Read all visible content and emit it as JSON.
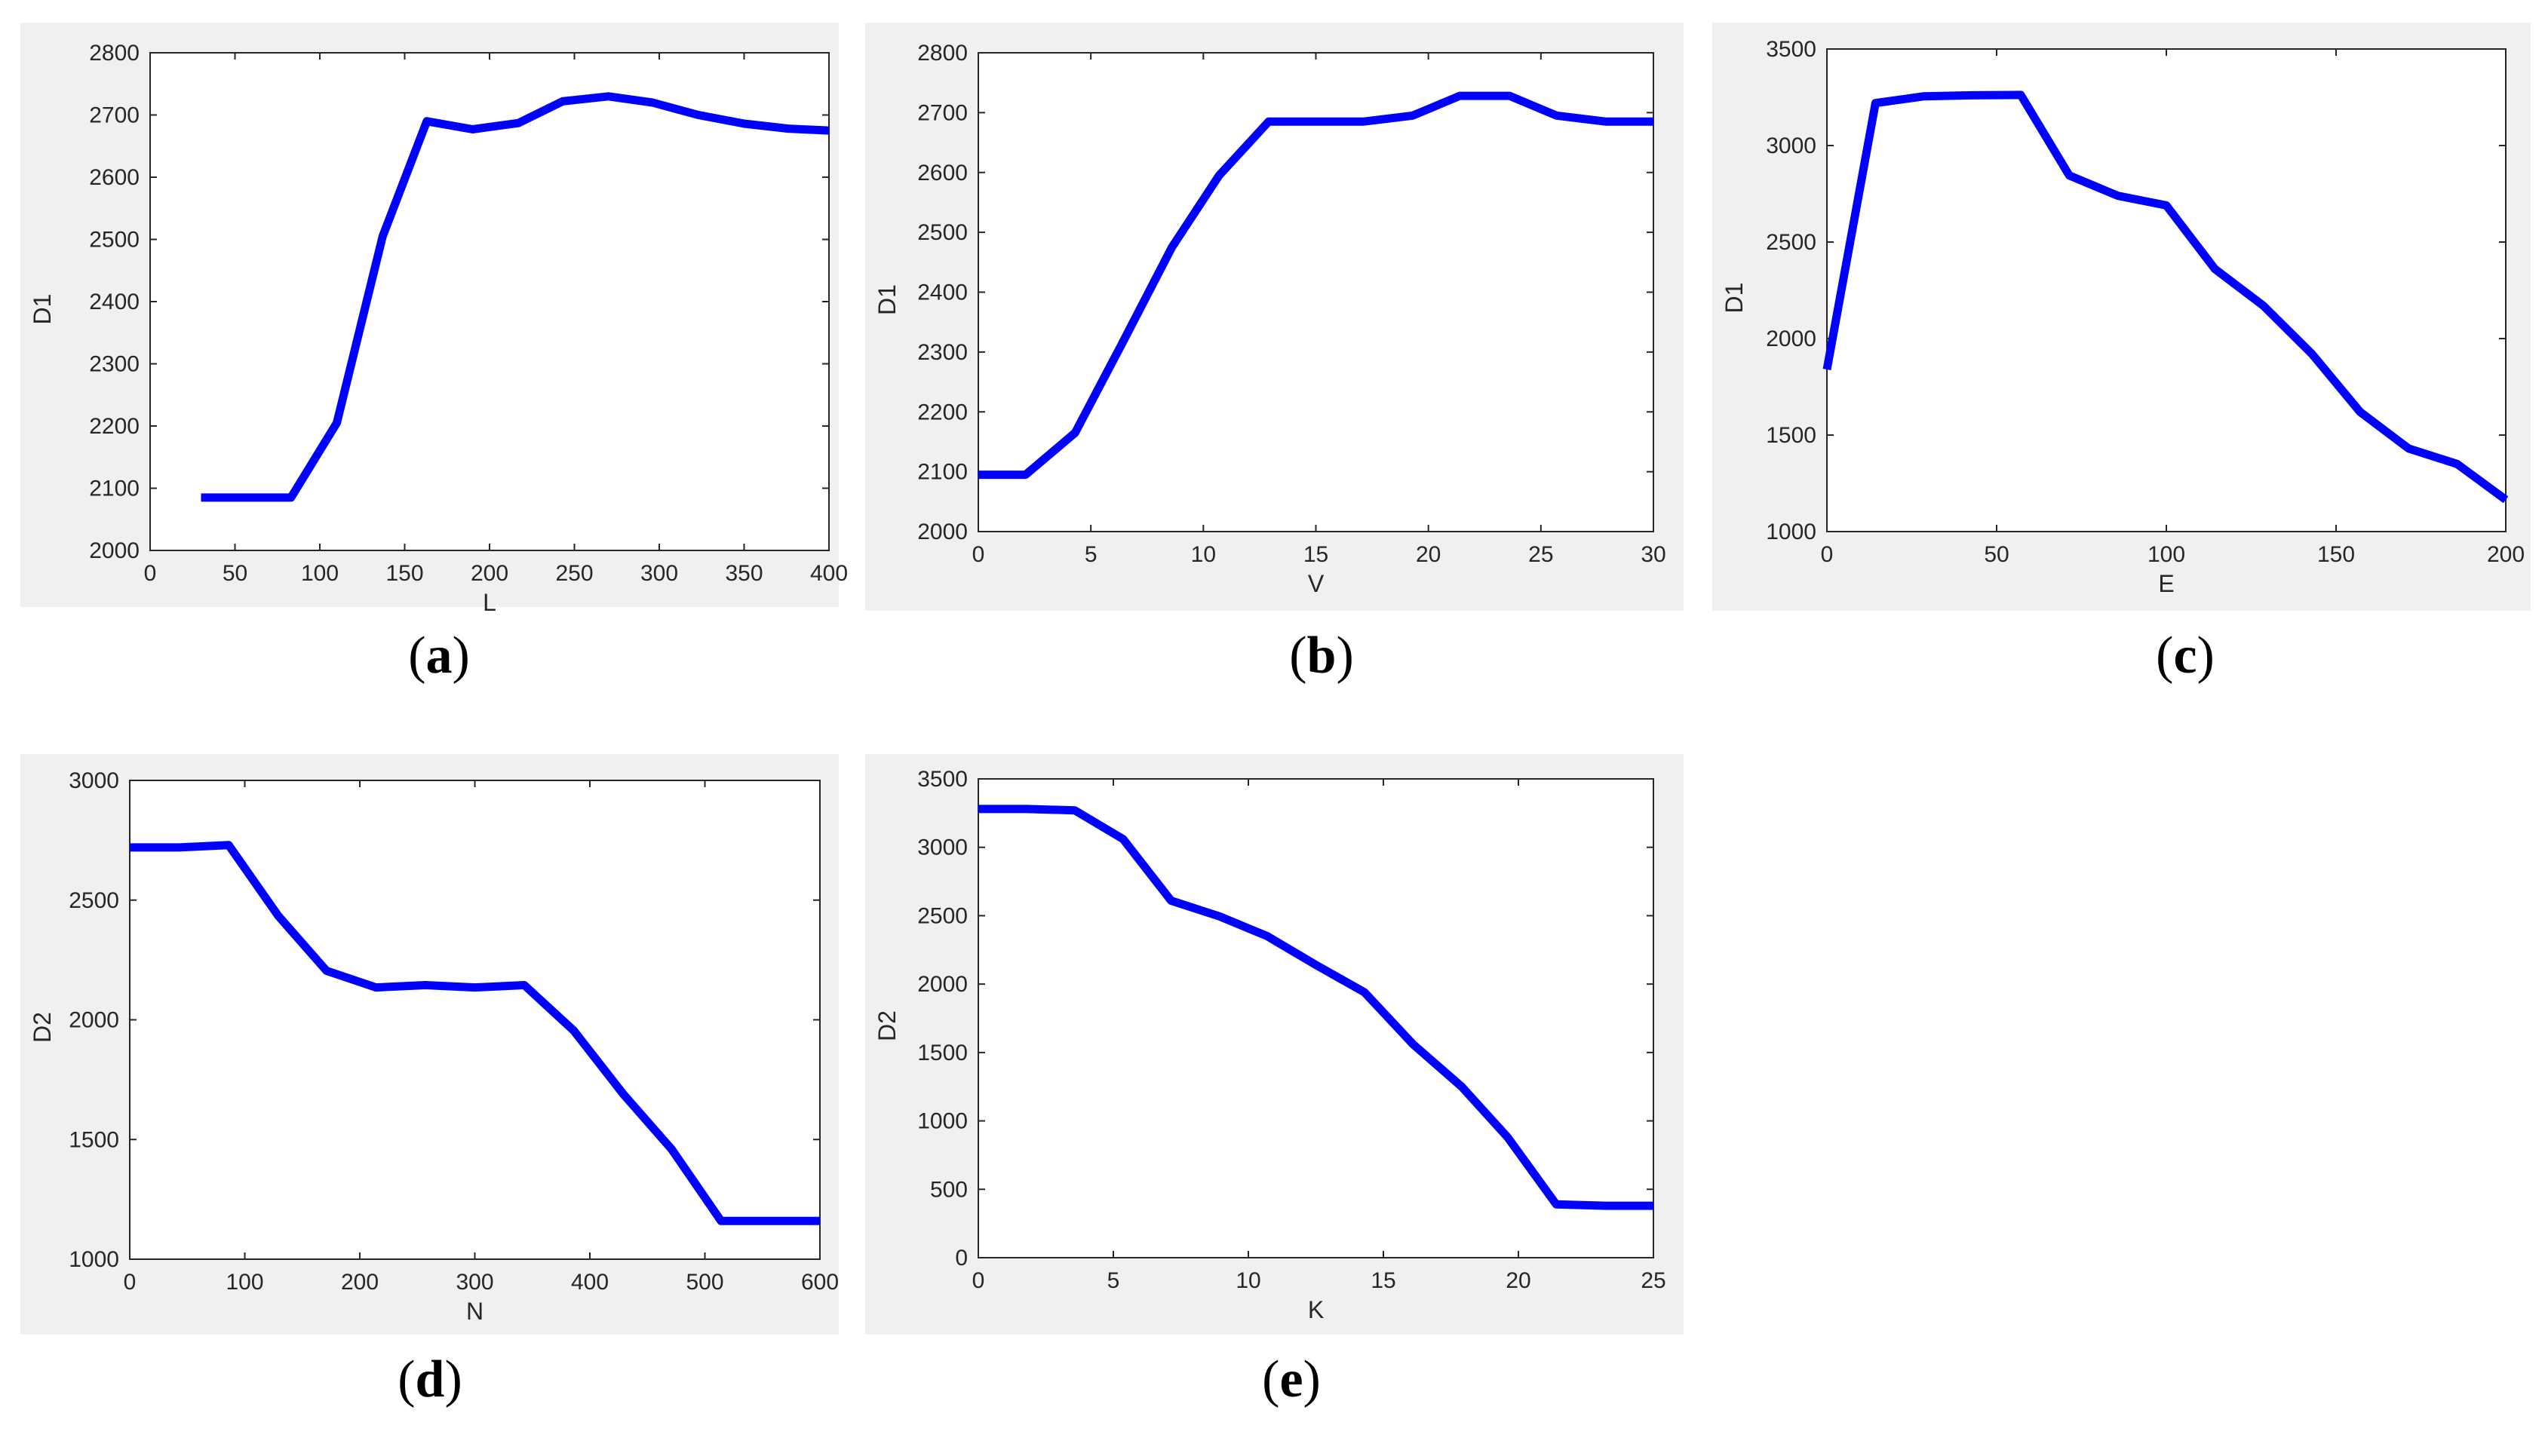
{
  "figure": {
    "line_color": "#0000ff",
    "captions": [
      {
        "open": "(",
        "letter": "a",
        "close": ")"
      },
      {
        "open": "(",
        "letter": "b",
        "close": ")"
      },
      {
        "open": "(",
        "letter": "c",
        "close": ")"
      },
      {
        "open": "(",
        "letter": "d",
        "close": ")"
      },
      {
        "open": "(",
        "letter": "e",
        "close": ")"
      }
    ]
  },
  "chart_data": [
    {
      "type": "line",
      "xlabel": "L",
      "ylabel": "D1",
      "xlim": [
        0,
        400
      ],
      "ylim": [
        2000,
        2800
      ],
      "xticks": [
        0,
        50,
        100,
        150,
        200,
        250,
        300,
        350,
        400
      ],
      "yticks": [
        2000,
        2100,
        2200,
        2300,
        2400,
        2500,
        2600,
        2700,
        2800
      ],
      "grid": false,
      "x": [
        30,
        55,
        83,
        110,
        137,
        163,
        190,
        217,
        243,
        270,
        296,
        323,
        350,
        376,
        400
      ],
      "values": [
        2085,
        2085,
        2085,
        2205,
        2505,
        2690,
        2677,
        2687,
        2722,
        2730,
        2720,
        2700,
        2686,
        2678,
        2675
      ]
    },
    {
      "type": "line",
      "xlabel": "V",
      "ylabel": "D1",
      "xlim": [
        0,
        30
      ],
      "ylim": [
        2000,
        2800
      ],
      "xticks": [
        0,
        5,
        10,
        15,
        20,
        25,
        30
      ],
      "yticks": [
        2000,
        2100,
        2200,
        2300,
        2400,
        2500,
        2600,
        2700,
        2800
      ],
      "grid": false,
      "x": [
        0,
        2.1,
        4.3,
        6.4,
        8.6,
        10.7,
        12.9,
        15,
        17.1,
        19.3,
        21.4,
        23.6,
        25.7,
        27.9,
        30
      ],
      "values": [
        2095,
        2095,
        2165,
        2315,
        2475,
        2595,
        2685,
        2685,
        2685,
        2695,
        2728,
        2728,
        2695,
        2685,
        2685
      ]
    },
    {
      "type": "line",
      "xlabel": "E",
      "ylabel": "D1",
      "xlim": [
        0,
        200
      ],
      "ylim": [
        1000,
        3500
      ],
      "xticks": [
        0,
        50,
        100,
        150,
        200
      ],
      "yticks": [
        1000,
        1500,
        2000,
        2500,
        3000,
        3500
      ],
      "grid": false,
      "x": [
        0,
        14.3,
        28.6,
        42.9,
        57.1,
        71.4,
        85.7,
        100,
        114.3,
        128.6,
        142.9,
        157.1,
        171.4,
        185.7,
        200
      ],
      "values": [
        1840,
        3220,
        3255,
        3260,
        3262,
        2845,
        2740,
        2690,
        2360,
        2170,
        1920,
        1620,
        1430,
        1350,
        1165
      ]
    },
    {
      "type": "line",
      "xlabel": "N",
      "ylabel": "D2",
      "xlim": [
        0,
        600
      ],
      "ylim": [
        1000,
        3000
      ],
      "xticks": [
        0,
        100,
        200,
        300,
        400,
        500,
        600
      ],
      "yticks": [
        1000,
        1500,
        2000,
        2500,
        3000
      ],
      "grid": false,
      "x": [
        0,
        43,
        86,
        129,
        171,
        214,
        257,
        300,
        343,
        386,
        429,
        471,
        514,
        557,
        600
      ],
      "values": [
        2720,
        2720,
        2730,
        2435,
        2205,
        2135,
        2145,
        2135,
        2145,
        1955,
        1690,
        1460,
        1160,
        1160,
        1160
      ]
    },
    {
      "type": "line",
      "xlabel": "K",
      "ylabel": "D2",
      "xlim": [
        0,
        25
      ],
      "ylim": [
        0,
        3500
      ],
      "xticks": [
        0,
        5,
        10,
        15,
        20,
        25
      ],
      "yticks": [
        0,
        500,
        1000,
        1500,
        2000,
        2500,
        3000,
        3500
      ],
      "grid": false,
      "x": [
        0,
        1.79,
        3.57,
        5.36,
        7.14,
        8.93,
        10.7,
        12.5,
        14.3,
        16.1,
        17.9,
        19.6,
        21.4,
        23.2,
        25
      ],
      "values": [
        3280,
        3280,
        3270,
        3060,
        2610,
        2495,
        2350,
        2140,
        1940,
        1560,
        1250,
        880,
        390,
        380,
        380
      ]
    }
  ]
}
